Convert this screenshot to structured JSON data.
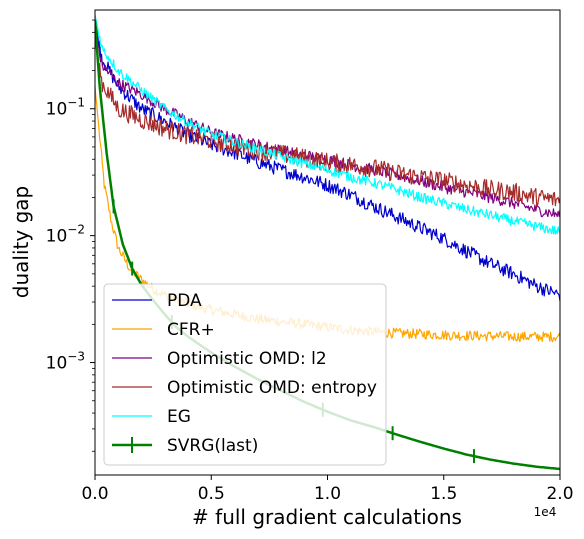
{
  "chart_data": {
    "type": "line",
    "xlabel": "# full gradient calculations",
    "ylabel": "duality gap",
    "x_multiplier_label": "1e4",
    "xlim": [
      0,
      20000
    ],
    "ylim": [
      0.00013,
      0.6
    ],
    "yscale": "log",
    "x_tick_labels": [
      "0.0",
      "0.5",
      "1.0",
      "1.5",
      "2.0"
    ],
    "x_tick_values": [
      0,
      5000,
      10000,
      15000,
      20000
    ],
    "y_tick_labels": [
      {
        "base": "10",
        "exp": "−1",
        "value": 0.1
      },
      {
        "base": "10",
        "exp": "−2",
        "value": 0.01
      },
      {
        "base": "10",
        "exp": "−3",
        "value": 0.001
      }
    ],
    "legend_position": "lower-left",
    "series": [
      {
        "name": "PDA",
        "color": "#0000cd",
        "noise": 0.11,
        "x": [
          0,
          300,
          1000,
          2000,
          3000,
          4000,
          5000,
          6000,
          7000,
          8000,
          9000,
          10000,
          11000,
          12000,
          13000,
          14000,
          15000,
          16000,
          17000,
          18000,
          19000,
          20000
        ],
        "y": [
          0.5,
          0.25,
          0.15,
          0.1,
          0.08,
          0.062,
          0.052,
          0.045,
          0.038,
          0.033,
          0.029,
          0.025,
          0.021,
          0.017,
          0.014,
          0.0115,
          0.0095,
          0.0075,
          0.006,
          0.005,
          0.004,
          0.0034
        ]
      },
      {
        "name": "CFR+",
        "color": "#ffa500",
        "noise": 0.08,
        "x": [
          0,
          200,
          400,
          700,
          1000,
          1500,
          2000,
          2500,
          3000,
          4000,
          5000,
          6000,
          7000,
          8000,
          9000,
          10000,
          11000,
          12000,
          13000,
          14000,
          15000,
          16000,
          17000,
          18000,
          19000,
          20000
        ],
        "y": [
          0.15,
          0.06,
          0.025,
          0.013,
          0.008,
          0.0055,
          0.0045,
          0.0038,
          0.0034,
          0.0029,
          0.0026,
          0.0024,
          0.0022,
          0.0021,
          0.002,
          0.0019,
          0.0018,
          0.00175,
          0.0017,
          0.00168,
          0.00165,
          0.00163,
          0.00162,
          0.0016,
          0.0016,
          0.0016
        ]
      },
      {
        "name": "Optimistic OMD: l2",
        "color": "#800080",
        "noise": 0.09,
        "x": [
          0,
          300,
          1000,
          2000,
          3000,
          4000,
          5000,
          6000,
          7000,
          8000,
          9000,
          10000,
          11000,
          12000,
          13000,
          14000,
          15000,
          16000,
          17000,
          18000,
          19000,
          20000
        ],
        "y": [
          0.4,
          0.22,
          0.16,
          0.13,
          0.1,
          0.08,
          0.065,
          0.058,
          0.052,
          0.047,
          0.043,
          0.04,
          0.036,
          0.033,
          0.03,
          0.027,
          0.024,
          0.022,
          0.02,
          0.018,
          0.016,
          0.0145
        ]
      },
      {
        "name": "Optimistic OMD: entropy",
        "color": "#a52a2a",
        "noise": 0.15,
        "x": [
          0,
          300,
          1000,
          2000,
          3000,
          4000,
          5000,
          6000,
          7000,
          8000,
          9000,
          10000,
          11000,
          12000,
          13000,
          14000,
          15000,
          16000,
          17000,
          18000,
          19000,
          20000
        ],
        "y": [
          0.35,
          0.16,
          0.1,
          0.082,
          0.07,
          0.062,
          0.056,
          0.051,
          0.047,
          0.044,
          0.041,
          0.038,
          0.036,
          0.034,
          0.031,
          0.029,
          0.027,
          0.025,
          0.023,
          0.022,
          0.02,
          0.019
        ]
      },
      {
        "name": "EG",
        "color": "#00ffff",
        "noise": 0.08,
        "x": [
          0,
          300,
          1000,
          2000,
          3000,
          4000,
          5000,
          6000,
          7000,
          8000,
          9000,
          10000,
          11000,
          12000,
          13000,
          14000,
          15000,
          16000,
          17000,
          18000,
          19000,
          20000
        ],
        "y": [
          0.55,
          0.3,
          0.2,
          0.14,
          0.1,
          0.078,
          0.063,
          0.055,
          0.048,
          0.042,
          0.037,
          0.033,
          0.029,
          0.026,
          0.023,
          0.02,
          0.018,
          0.016,
          0.0145,
          0.013,
          0.0118,
          0.0107
        ]
      },
      {
        "name": "SVRG(last)",
        "color": "#008000",
        "noise": 0,
        "x": [
          0,
          200,
          500,
          800,
          1200,
          1600,
          2000,
          2500,
          3000,
          3500,
          4000,
          5000,
          6000,
          7000,
          8000,
          9000,
          10000,
          11000,
          12000,
          13000,
          14000,
          15000,
          16000,
          17000,
          18000,
          19000,
          20000
        ],
        "y": [
          0.5,
          0.15,
          0.045,
          0.017,
          0.0085,
          0.0055,
          0.0041,
          0.0031,
          0.0024,
          0.0019,
          0.0016,
          0.0012,
          0.00093,
          0.00074,
          0.0006,
          0.00049,
          0.00041,
          0.00035,
          0.00031,
          0.00027,
          0.000237,
          0.00021,
          0.000188,
          0.000172,
          0.00016,
          0.000151,
          0.000145
        ],
        "errorbar_x": [
          800,
          1600,
          3300,
          9800,
          12800,
          16300
        ]
      }
    ]
  }
}
